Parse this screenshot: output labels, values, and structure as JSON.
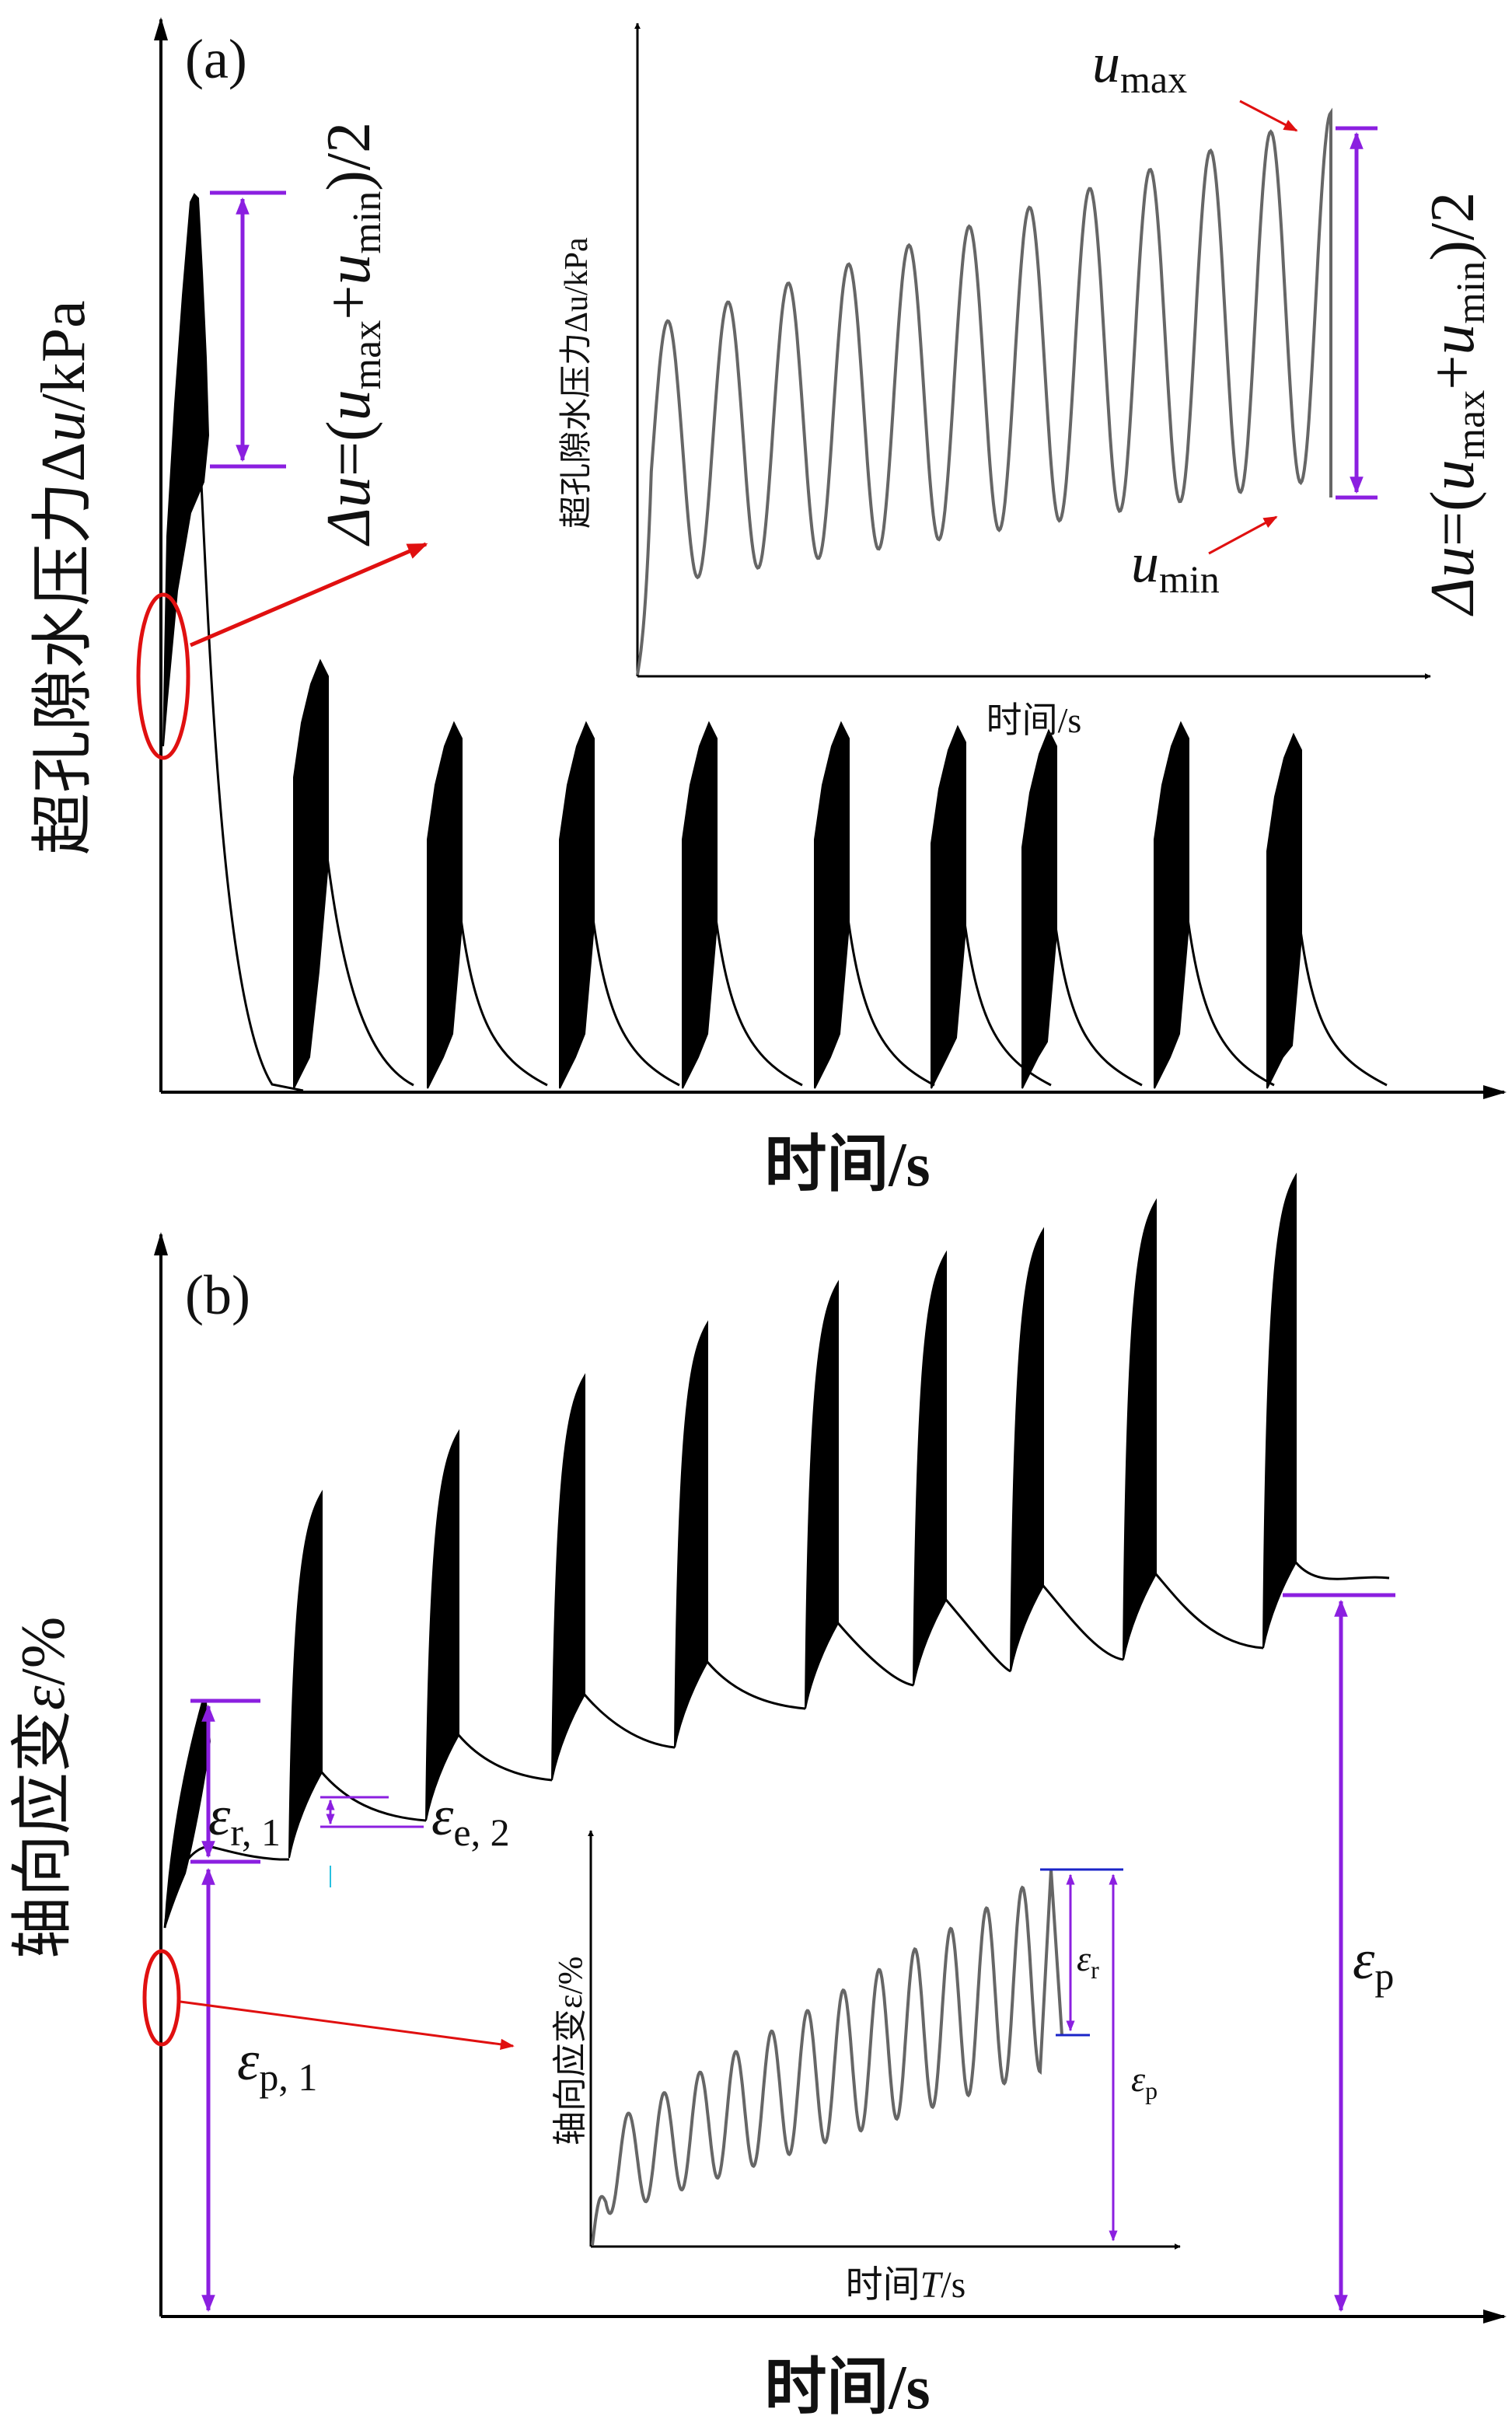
{
  "panel_a": {
    "label": "(a)",
    "ylabel_prefix": "超孔隙水压力Δ",
    "ylabel_var": "u",
    "ylabel_unit": "/kPa",
    "xlabel": "时间/s",
    "formula": {
      "lhs": "Δu",
      "eq": "=",
      "open": "(",
      "u1": "u",
      "sub1": "max",
      "plus": "+",
      "u2": "u",
      "sub2": "min",
      "close": ")/2"
    },
    "inset": {
      "ylabel": "超孔隙水压力Δu/kPa",
      "xlabel": "时间/s",
      "umax": "u",
      "umax_sub": "max",
      "umin": "u",
      "umin_sub": "min"
    }
  },
  "panel_b": {
    "label": "(b)",
    "ylabel_prefix": "轴向应变",
    "ylabel_var": "ε",
    "ylabel_unit": "/%",
    "xlabel": "时间/s",
    "eps_r1": "ε",
    "eps_r1_sub": "r, 1",
    "eps_e2": "ε",
    "eps_e2_sub": "e, 2",
    "eps_p1": "ε",
    "eps_p1_sub": "p, 1",
    "eps_p": "ε",
    "eps_p_sub": "p",
    "inset": {
      "ylabel": "轴向应变ε/%",
      "xlabel_prefix": "时间",
      "xlabel_var": "T",
      "xlabel_unit": "/s",
      "eps_r": "ε",
      "eps_r_sub": "r",
      "eps_p": "ε",
      "eps_p_sub": "p"
    }
  }
}
